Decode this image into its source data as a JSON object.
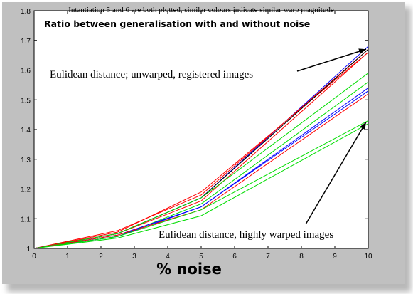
{
  "chart_data": {
    "type": "line",
    "title": "Intantiation 5 and 6 are both plotted, similar colours indicate similar warp magnitude",
    "subtitle": "Ratio between generalisation with and without noise",
    "xlabel": "% noise",
    "ylabel": "",
    "xlim": [
      0,
      10
    ],
    "ylim": [
      1,
      1.8
    ],
    "x_ticks": [
      "0",
      "1",
      "2",
      "3",
      "4",
      "5",
      "6",
      "7",
      "8",
      "9",
      "10"
    ],
    "y_ticks": [
      "1",
      "1.1",
      "1.2",
      "1.3",
      "1.4",
      "1.5",
      "1.6",
      "1.7",
      "1.8"
    ],
    "x": [
      0,
      2.5,
      5,
      10
    ],
    "series": [
      {
        "color": "#0000ff",
        "values": [
          1.0,
          1.05,
          1.17,
          1.68
        ]
      },
      {
        "color": "#ff0000",
        "values": [
          1.0,
          1.055,
          1.19,
          1.66
        ]
      },
      {
        "color": "#ff0000",
        "values": [
          1.0,
          1.06,
          1.18,
          1.67
        ]
      },
      {
        "color": "#000000",
        "values": [
          1.0,
          1.05,
          1.17,
          1.67
        ]
      },
      {
        "color": "#ff0000",
        "values": [
          1.0,
          1.05,
          1.16,
          1.66
        ]
      },
      {
        "color": "#00dd00",
        "values": [
          1.0,
          1.05,
          1.17,
          1.59
        ]
      },
      {
        "color": "#00dd00",
        "values": [
          1.0,
          1.04,
          1.15,
          1.56
        ]
      },
      {
        "color": "#0000ff",
        "values": [
          1.0,
          1.045,
          1.14,
          1.54
        ]
      },
      {
        "color": "#0000ff",
        "values": [
          1.0,
          1.04,
          1.14,
          1.53
        ]
      },
      {
        "color": "#ff0000",
        "values": [
          1.0,
          1.045,
          1.13,
          1.52
        ]
      },
      {
        "color": "#00dd00",
        "values": [
          1.0,
          1.04,
          1.13,
          1.43
        ]
      },
      {
        "color": "#00dd00",
        "values": [
          1.0,
          1.035,
          1.11,
          1.42
        ]
      }
    ],
    "annotations": [
      {
        "text": "Eulidean distance; unwarped, registered images",
        "arrow_to": [
          10,
          1.675
        ]
      },
      {
        "text": "Eulidean distance, highly warped images",
        "arrow_to": [
          10,
          1.43
        ]
      }
    ],
    "grid": false,
    "legend": "none"
  }
}
